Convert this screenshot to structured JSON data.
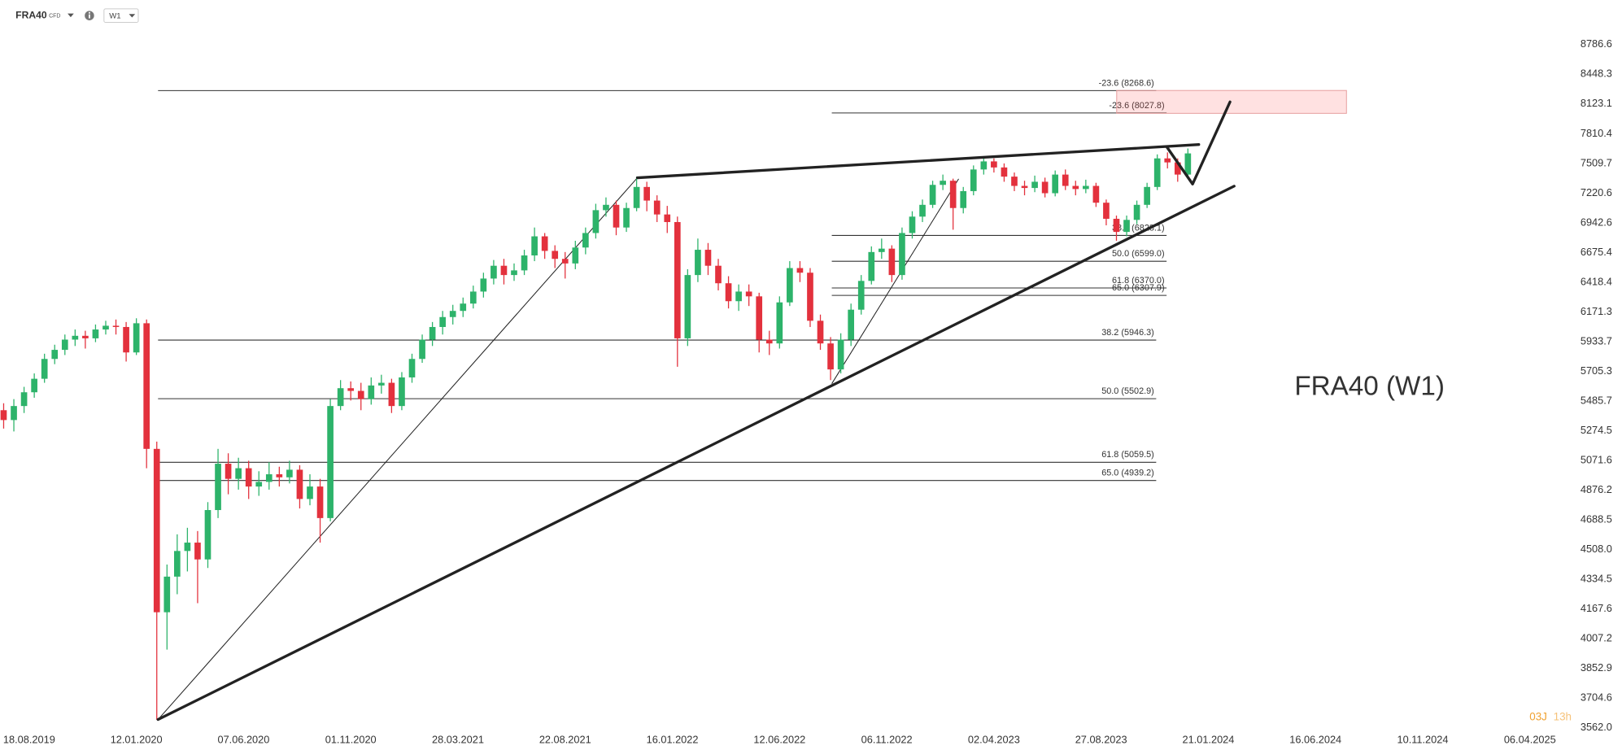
{
  "toolbar": {
    "symbol": "FRA40",
    "kind": "CFD",
    "interval": "W1"
  },
  "countdown": {
    "days": "03J",
    "hours": "13h"
  },
  "chart_data": {
    "type": "candlestick",
    "title": "FRA40 (W1)",
    "log_scale": true,
    "grid": false,
    "up_color": "#2db36a",
    "down_color": "#e3313d",
    "xlim": [
      "09.07.2019",
      "31.05.2025"
    ],
    "xticks": [
      "18.08.2019",
      "12.01.2020",
      "07.06.2020",
      "01.11.2020",
      "28.03.2021",
      "22.08.2021",
      "16.01.2022",
      "12.06.2022",
      "06.11.2022",
      "02.04.2023",
      "27.08.2023",
      "21.01.2024",
      "16.06.2024",
      "10.11.2024",
      "06.04.2025"
    ],
    "ylim": [
      3456,
      9320
    ],
    "yticks": [
      8786.6,
      8448.3,
      8123.1,
      7810.4,
      7509.7,
      7220.6,
      6942.6,
      6675.4,
      6418.4,
      6171.3,
      5933.7,
      5705.3,
      5485.7,
      5274.5,
      5071.6,
      4876.2,
      4688.5,
      {
        "value": 4508,
        "label": "4508.0"
      },
      4334.5,
      4167.6,
      4007.2,
      3852.9,
      3704.6,
      {
        "value": 3562,
        "label": "3562.0"
      }
    ],
    "fib_sets": [
      {
        "levels": [
          {
            "value": 8268.6,
            "label": "-23.6 (8268.6)"
          },
          {
            "value": 5946.3,
            "label": "38.2 (5946.3)"
          },
          {
            "value": 5502.9,
            "label": "50.0 (5502.9)"
          },
          {
            "value": 5059.5,
            "label": "61.8 (5059.5)"
          },
          {
            "value": 4939.2,
            "label": "65.0 (4939.2)"
          }
        ]
      },
      {
        "levels": [
          {
            "value": 8027.8,
            "label": "-23.6 (8027.8)"
          },
          {
            "value": 6828.1,
            "label": "38.2 (6828.1)"
          },
          {
            "value": 6599.0,
            "label": "50.0 (6599.0)"
          },
          {
            "value": 6370.0,
            "label": "61.8 (6370.0)"
          },
          {
            "value": 6307.9,
            "label": "65.0 (6307.9)"
          }
        ]
      }
    ],
    "x": [
      "14.07.2019",
      "28.07.2019",
      "11.08.2019",
      "25.08.2019",
      "08.09.2019",
      "22.09.2019",
      "06.10.2019",
      "20.10.2019",
      "03.11.2019",
      "17.11.2019",
      "01.12.2019",
      "15.12.2019",
      "29.12.2019",
      "12.01.2020",
      "26.01.2020",
      "09.02.2020",
      "23.02.2020",
      "08.03.2020",
      "22.03.2020",
      "05.04.2020",
      "19.04.2020",
      "03.05.2020",
      "17.05.2020",
      "31.05.2020",
      "14.06.2020",
      "28.06.2020",
      "12.07.2020",
      "26.07.2020",
      "09.08.2020",
      "23.08.2020",
      "06.09.2020",
      "20.09.2020",
      "04.10.2020",
      "18.10.2020",
      "01.11.2020",
      "15.11.2020",
      "29.11.2020",
      "13.12.2020",
      "27.12.2020",
      "10.01.2021",
      "24.01.2021",
      "07.02.2021",
      "21.02.2021",
      "07.03.2021",
      "21.03.2021",
      "04.04.2021",
      "18.04.2021",
      "02.05.2021",
      "16.05.2021",
      "30.05.2021",
      "13.06.2021",
      "27.06.2021",
      "11.07.2021",
      "25.07.2021",
      "08.08.2021",
      "22.08.2021",
      "05.09.2021",
      "19.09.2021",
      "03.10.2021",
      "17.10.2021",
      "31.10.2021",
      "14.11.2021",
      "28.11.2021",
      "12.12.2021",
      "26.12.2021",
      "09.01.2022",
      "23.01.2022",
      "06.02.2022",
      "20.02.2022",
      "06.03.2022",
      "20.03.2022",
      "03.04.2022",
      "17.04.2022",
      "01.05.2022",
      "15.05.2022",
      "29.05.2022",
      "12.06.2022",
      "26.06.2022",
      "10.07.2022",
      "24.07.2022",
      "07.08.2022",
      "21.08.2022",
      "04.09.2022",
      "18.09.2022",
      "02.10.2022",
      "16.10.2022",
      "30.10.2022",
      "13.11.2022",
      "27.11.2022",
      "11.12.2022",
      "25.12.2022",
      "08.01.2023",
      "22.01.2023",
      "05.02.2023",
      "19.02.2023",
      "05.03.2023",
      "19.03.2023",
      "02.04.2023",
      "16.04.2023",
      "30.04.2023",
      "14.05.2023",
      "28.05.2023",
      "11.06.2023",
      "25.06.2023",
      "09.07.2023",
      "23.07.2023",
      "06.08.2023",
      "20.08.2023",
      "03.09.2023",
      "17.09.2023",
      "01.10.2023",
      "15.10.2023",
      "29.10.2023",
      "12.11.2023",
      "26.11.2023",
      "10.12.2023",
      "24.12.2023"
    ],
    "candles": [
      [
        5420,
        5470,
        5290,
        5350
      ],
      [
        5350,
        5500,
        5270,
        5450
      ],
      [
        5450,
        5590,
        5400,
        5550
      ],
      [
        5550,
        5690,
        5510,
        5650
      ],
      [
        5650,
        5840,
        5620,
        5800
      ],
      [
        5800,
        5910,
        5760,
        5870
      ],
      [
        5870,
        5990,
        5830,
        5950
      ],
      [
        5950,
        6030,
        5900,
        5980
      ],
      [
        5980,
        6020,
        5880,
        5960
      ],
      [
        5960,
        6070,
        5930,
        6030
      ],
      [
        6030,
        6100,
        5990,
        6060
      ],
      [
        6060,
        6110,
        5990,
        6050
      ],
      [
        6050,
        6090,
        5780,
        5850
      ],
      [
        5850,
        6120,
        5830,
        6080
      ],
      [
        6080,
        6110,
        5020,
        5150
      ],
      [
        5150,
        5200,
        3600,
        4150
      ],
      [
        4150,
        4420,
        3950,
        4350
      ],
      [
        4350,
        4600,
        4250,
        4500
      ],
      [
        4500,
        4640,
        4380,
        4550
      ],
      [
        4550,
        4620,
        4200,
        4450
      ],
      [
        4450,
        4800,
        4400,
        4750
      ],
      [
        4750,
        5150,
        4700,
        5050
      ],
      [
        5050,
        5120,
        4850,
        4950
      ],
      [
        4950,
        5090,
        4880,
        5020
      ],
      [
        5020,
        5070,
        4820,
        4900
      ],
      [
        4900,
        5000,
        4840,
        4930
      ],
      [
        4930,
        5060,
        4880,
        4980
      ],
      [
        4980,
        5030,
        4900,
        4960
      ],
      [
        4960,
        5070,
        4920,
        5010
      ],
      [
        5010,
        5040,
        4760,
        4820
      ],
      [
        4820,
        4980,
        4780,
        4900
      ],
      [
        4900,
        4950,
        4550,
        4700
      ],
      [
        4700,
        5500,
        4680,
        5450
      ],
      [
        5450,
        5640,
        5420,
        5580
      ],
      [
        5580,
        5630,
        5490,
        5560
      ],
      [
        5560,
        5620,
        5420,
        5500
      ],
      [
        5500,
        5660,
        5460,
        5600
      ],
      [
        5600,
        5680,
        5540,
        5620
      ],
      [
        5620,
        5650,
        5400,
        5450
      ],
      [
        5450,
        5700,
        5420,
        5660
      ],
      [
        5660,
        5840,
        5620,
        5800
      ],
      [
        5800,
        5990,
        5770,
        5950
      ],
      [
        5950,
        6090,
        5900,
        6050
      ],
      [
        6050,
        6180,
        5990,
        6130
      ],
      [
        6130,
        6230,
        6070,
        6180
      ],
      [
        6180,
        6290,
        6130,
        6240
      ],
      [
        6240,
        6390,
        6200,
        6340
      ],
      [
        6340,
        6500,
        6290,
        6450
      ],
      [
        6450,
        6610,
        6400,
        6560
      ],
      [
        6560,
        6620,
        6400,
        6480
      ],
      [
        6480,
        6580,
        6430,
        6520
      ],
      [
        6520,
        6700,
        6480,
        6650
      ],
      [
        6650,
        6900,
        6600,
        6820
      ],
      [
        6820,
        6850,
        6620,
        6690
      ],
      [
        6690,
        6740,
        6540,
        6620
      ],
      [
        6620,
        6680,
        6450,
        6580
      ],
      [
        6580,
        6780,
        6530,
        6720
      ],
      [
        6720,
        6900,
        6660,
        6850
      ],
      [
        6850,
        7120,
        6800,
        7060
      ],
      [
        7060,
        7180,
        7000,
        7110
      ],
      [
        7110,
        7150,
        6830,
        6900
      ],
      [
        6900,
        7130,
        6860,
        7080
      ],
      [
        7080,
        7380,
        7050,
        7280
      ],
      [
        7280,
        7330,
        7050,
        7150
      ],
      [
        7150,
        7200,
        6950,
        7020
      ],
      [
        7020,
        7100,
        6850,
        6950
      ],
      [
        6950,
        7000,
        5740,
        5960
      ],
      [
        5960,
        6530,
        5900,
        6480
      ],
      [
        6480,
        6800,
        6420,
        6700
      ],
      [
        6700,
        6760,
        6480,
        6560
      ],
      [
        6560,
        6620,
        6350,
        6410
      ],
      [
        6410,
        6470,
        6200,
        6260
      ],
      [
        6260,
        6400,
        6180,
        6340
      ],
      [
        6340,
        6400,
        6220,
        6300
      ],
      [
        6300,
        6330,
        5850,
        5950
      ],
      [
        5950,
        6020,
        5830,
        5920
      ],
      [
        5920,
        6300,
        5880,
        6250
      ],
      [
        6250,
        6600,
        6220,
        6540
      ],
      [
        6540,
        6600,
        6420,
        6500
      ],
      [
        6500,
        6540,
        6050,
        6100
      ],
      [
        6100,
        6150,
        5870,
        5920
      ],
      [
        5920,
        5970,
        5640,
        5720
      ],
      [
        5720,
        6000,
        5690,
        5950
      ],
      [
        5950,
        6240,
        5900,
        6190
      ],
      [
        6190,
        6480,
        6150,
        6430
      ],
      [
        6430,
        6730,
        6400,
        6680
      ],
      [
        6680,
        6800,
        6620,
        6710
      ],
      [
        6710,
        6740,
        6420,
        6480
      ],
      [
        6480,
        6900,
        6440,
        6850
      ],
      [
        6850,
        7050,
        6800,
        7000
      ],
      [
        7000,
        7160,
        6950,
        7110
      ],
      [
        7110,
        7340,
        7080,
        7300
      ],
      [
        7300,
        7400,
        7250,
        7340
      ],
      [
        7340,
        7360,
        6880,
        7080
      ],
      [
        7080,
        7280,
        7030,
        7240
      ],
      [
        7240,
        7490,
        7200,
        7450
      ],
      [
        7450,
        7580,
        7400,
        7530
      ],
      [
        7530,
        7560,
        7420,
        7470
      ],
      [
        7470,
        7510,
        7330,
        7380
      ],
      [
        7380,
        7420,
        7240,
        7290
      ],
      [
        7290,
        7340,
        7200,
        7270
      ],
      [
        7270,
        7390,
        7230,
        7330
      ],
      [
        7330,
        7370,
        7180,
        7220
      ],
      [
        7220,
        7440,
        7190,
        7400
      ],
      [
        7400,
        7450,
        7250,
        7290
      ],
      [
        7290,
        7340,
        7200,
        7260
      ],
      [
        7260,
        7350,
        7220,
        7290
      ],
      [
        7290,
        7320,
        7090,
        7130
      ],
      [
        7130,
        7160,
        6920,
        6980
      ],
      [
        6980,
        7010,
        6780,
        6860
      ],
      [
        6860,
        7010,
        6820,
        6970
      ],
      [
        6970,
        7150,
        6930,
        7110
      ],
      [
        7110,
        7320,
        7080,
        7280
      ],
      [
        7280,
        7600,
        7250,
        7560
      ],
      [
        7560,
        7620,
        7460,
        7520
      ],
      [
        7520,
        7560,
        7330,
        7400
      ],
      [
        7400,
        7660,
        7370,
        7610
      ]
    ]
  }
}
